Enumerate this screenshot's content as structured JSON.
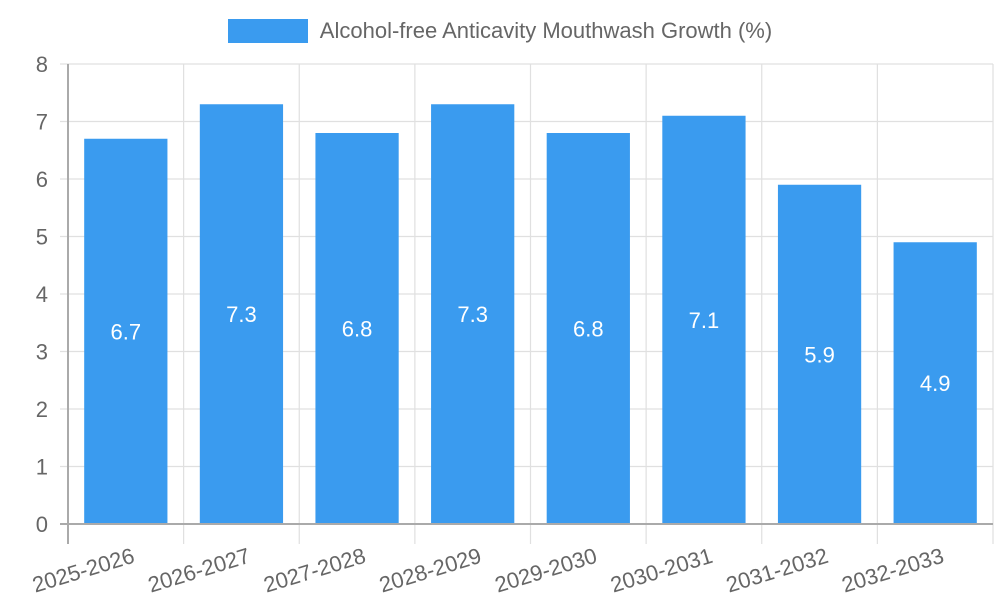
{
  "chart_data": {
    "type": "bar",
    "title": "",
    "legend": [
      {
        "label": "Alcohol-free Anticavity Mouthwash Growth (%)",
        "color": "#3a9bef"
      }
    ],
    "legend_position": "top",
    "categories": [
      "2025-2026",
      "2026-2027",
      "2027-2028",
      "2028-2029",
      "2029-2030",
      "2030-2031",
      "2031-2032",
      "2032-2033"
    ],
    "series": [
      {
        "name": "Alcohol-free Anticavity Mouthwash Growth (%)",
        "values": [
          6.7,
          7.3,
          6.8,
          7.3,
          6.8,
          7.1,
          5.9,
          4.9
        ],
        "color": "#3a9bef"
      }
    ],
    "data_labels": [
      "6.7",
      "7.3",
      "6.8",
      "7.3",
      "6.8",
      "7.1",
      "5.9",
      "4.9"
    ],
    "xlabel": "",
    "ylabel": "",
    "ylim": [
      0,
      8
    ],
    "yticks": [
      "0",
      "1",
      "2",
      "3",
      "4",
      "5",
      "6",
      "7",
      "8"
    ],
    "grid": true
  }
}
